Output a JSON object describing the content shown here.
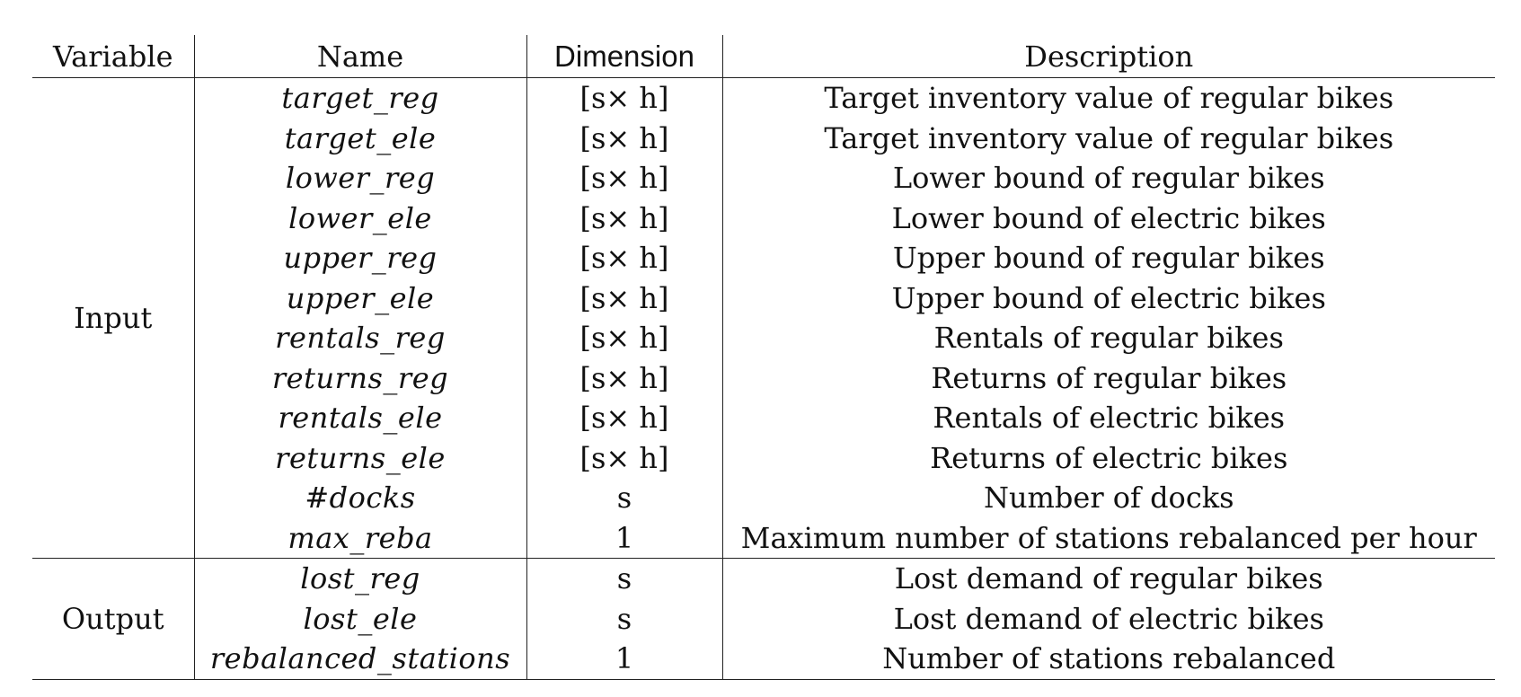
{
  "table": {
    "headers": {
      "variable": "Variable",
      "name": "Name",
      "dimension": "Dimension",
      "description": "Description"
    },
    "groups": [
      {
        "label": "Input",
        "rows": [
          {
            "name": "target_reg",
            "dimension": "[s× h]",
            "description": "Target inventory value of regular bikes"
          },
          {
            "name": "target_ele",
            "dimension": "[s× h]",
            "description": "Target inventory value of regular bikes"
          },
          {
            "name": "lower_reg",
            "dimension": "[s× h]",
            "description": "Lower bound of regular bikes"
          },
          {
            "name": "lower_ele",
            "dimension": "[s× h]",
            "description": "Lower bound of electric bikes"
          },
          {
            "name": "upper_reg",
            "dimension": "[s× h]",
            "description": "Upper bound of regular bikes"
          },
          {
            "name": "upper_ele",
            "dimension": "[s× h]",
            "description": "Upper bound of electric bikes"
          },
          {
            "name": "rentals_reg",
            "dimension": "[s× h]",
            "description": "Rentals of regular bikes"
          },
          {
            "name": "returns_reg",
            "dimension": "[s× h]",
            "description": "Returns of regular bikes"
          },
          {
            "name": "rentals_ele",
            "dimension": "[s× h]",
            "description": "Rentals of electric bikes"
          },
          {
            "name": "returns_ele",
            "dimension": "[s× h]",
            "description": "Returns of electric bikes"
          },
          {
            "name": "#docks",
            "dimension": "s",
            "description": "Number of docks"
          },
          {
            "name": "max_reba",
            "dimension": "1",
            "description": "Maximum number of stations rebalanced per hour"
          }
        ]
      },
      {
        "label": "Output",
        "rows": [
          {
            "name": "lost_reg",
            "dimension": "s",
            "description": "Lost demand of regular bikes"
          },
          {
            "name": "lost_ele",
            "dimension": "s",
            "description": "Lost demand of electric bikes"
          },
          {
            "name": "rebalanced_stations",
            "dimension": "1",
            "description": "Number of stations rebalanced"
          }
        ]
      }
    ]
  }
}
